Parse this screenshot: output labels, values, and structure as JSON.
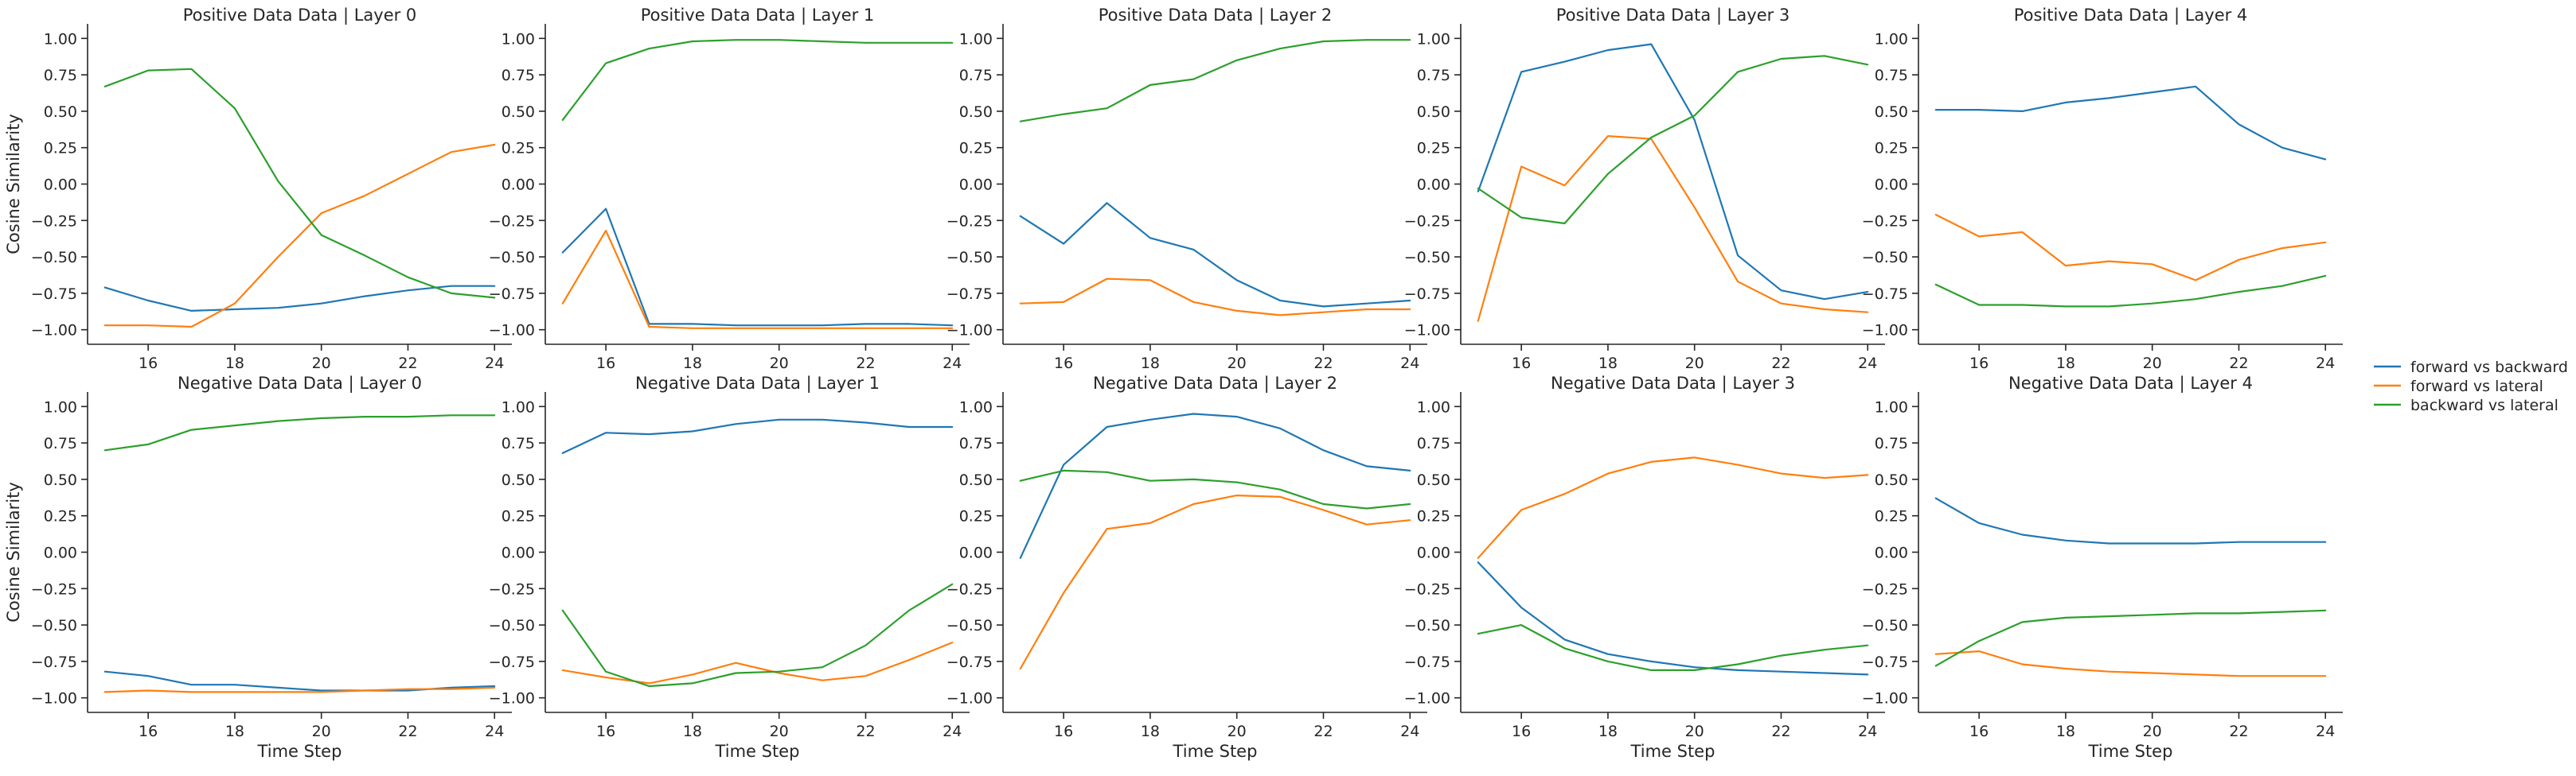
{
  "chart_data": [
    {
      "type": "line",
      "title": "Positive Data Data | Layer 0",
      "ylabel": "Cosine Similarity",
      "xlabel": "",
      "x": [
        15,
        16,
        17,
        18,
        19,
        20,
        21,
        22,
        23,
        24
      ],
      "ylim": [
        -1.1,
        1.1
      ],
      "xlim": [
        14.6,
        24.4
      ],
      "xticks": [
        16,
        18,
        20,
        22,
        24
      ],
      "yticks": [
        "1.00",
        "0.75",
        "0.50",
        "0.25",
        "0.00",
        "−0.25",
        "−0.50",
        "−0.75",
        "−1.00"
      ],
      "series": [
        {
          "name": "forward vs backward",
          "color": "#1f77b4",
          "values": [
            -0.71,
            -0.8,
            -0.87,
            -0.86,
            -0.85,
            -0.82,
            -0.77,
            -0.73,
            -0.7,
            -0.7
          ]
        },
        {
          "name": "forward vs lateral",
          "color": "#ff7f0e",
          "values": [
            -0.97,
            -0.97,
            -0.98,
            -0.82,
            -0.5,
            -0.2,
            -0.08,
            0.07,
            0.22,
            0.27
          ]
        },
        {
          "name": "backward vs lateral",
          "color": "#2ca02c",
          "values": [
            0.67,
            0.78,
            0.79,
            0.52,
            0.02,
            -0.35,
            -0.49,
            -0.64,
            -0.75,
            -0.78
          ]
        }
      ]
    },
    {
      "type": "line",
      "title": "Positive Data Data | Layer 1",
      "ylabel": "",
      "xlabel": "",
      "x": [
        15,
        16,
        17,
        18,
        19,
        20,
        21,
        22,
        23,
        24
      ],
      "ylim": [
        -1.1,
        1.1
      ],
      "xlim": [
        14.6,
        24.4
      ],
      "xticks": [
        16,
        18,
        20,
        22,
        24
      ],
      "yticks": [
        "1.00",
        "0.75",
        "0.50",
        "0.25",
        "0.00",
        "−0.25",
        "−0.50",
        "−0.75",
        "−1.00"
      ],
      "series": [
        {
          "name": "forward vs backward",
          "color": "#1f77b4",
          "values": [
            -0.47,
            -0.17,
            -0.96,
            -0.96,
            -0.97,
            -0.97,
            -0.97,
            -0.96,
            -0.96,
            -0.97
          ]
        },
        {
          "name": "forward vs lateral",
          "color": "#ff7f0e",
          "values": [
            -0.82,
            -0.32,
            -0.98,
            -0.99,
            -0.99,
            -0.99,
            -0.99,
            -0.99,
            -0.99,
            -0.99
          ]
        },
        {
          "name": "backward vs lateral",
          "color": "#2ca02c",
          "values": [
            0.44,
            0.83,
            0.93,
            0.98,
            0.99,
            0.99,
            0.98,
            0.97,
            0.97,
            0.97
          ]
        }
      ]
    },
    {
      "type": "line",
      "title": "Positive Data Data | Layer 2",
      "ylabel": "",
      "xlabel": "",
      "x": [
        15,
        16,
        17,
        18,
        19,
        20,
        21,
        22,
        23,
        24
      ],
      "ylim": [
        -1.1,
        1.1
      ],
      "xlim": [
        14.6,
        24.4
      ],
      "xticks": [
        16,
        18,
        20,
        22,
        24
      ],
      "yticks": [
        "1.00",
        "0.75",
        "0.50",
        "0.25",
        "0.00",
        "−0.25",
        "−0.50",
        "−0.75",
        "−1.00"
      ],
      "series": [
        {
          "name": "forward vs backward",
          "color": "#1f77b4",
          "values": [
            -0.22,
            -0.41,
            -0.13,
            -0.37,
            -0.45,
            -0.66,
            -0.8,
            -0.84,
            -0.82,
            -0.8
          ]
        },
        {
          "name": "forward vs lateral",
          "color": "#ff7f0e",
          "values": [
            -0.82,
            -0.81,
            -0.65,
            -0.66,
            -0.81,
            -0.87,
            -0.9,
            -0.88,
            -0.86,
            -0.86
          ]
        },
        {
          "name": "backward vs lateral",
          "color": "#2ca02c",
          "values": [
            0.43,
            0.48,
            0.52,
            0.68,
            0.72,
            0.85,
            0.93,
            0.98,
            0.99,
            0.99
          ]
        }
      ]
    },
    {
      "type": "line",
      "title": "Positive Data Data | Layer 3",
      "ylabel": "",
      "xlabel": "",
      "x": [
        15,
        16,
        17,
        18,
        19,
        20,
        21,
        22,
        23,
        24
      ],
      "ylim": [
        -1.1,
        1.1
      ],
      "xlim": [
        14.6,
        24.4
      ],
      "xticks": [
        16,
        18,
        20,
        22,
        24
      ],
      "yticks": [
        "1.00",
        "0.75",
        "0.50",
        "0.25",
        "0.00",
        "−0.25",
        "−0.50",
        "−0.75",
        "−1.00"
      ],
      "series": [
        {
          "name": "forward vs backward",
          "color": "#1f77b4",
          "values": [
            -0.05,
            0.77,
            0.84,
            0.92,
            0.96,
            0.44,
            -0.49,
            -0.73,
            -0.79,
            -0.74
          ]
        },
        {
          "name": "forward vs lateral",
          "color": "#ff7f0e",
          "values": [
            -0.94,
            0.12,
            -0.01,
            0.33,
            0.31,
            -0.16,
            -0.67,
            -0.82,
            -0.86,
            -0.88
          ]
        },
        {
          "name": "backward vs lateral",
          "color": "#2ca02c",
          "values": [
            -0.03,
            -0.23,
            -0.27,
            0.07,
            0.32,
            0.47,
            0.77,
            0.86,
            0.88,
            0.82
          ]
        }
      ]
    },
    {
      "type": "line",
      "title": "Positive Data Data | Layer 4",
      "ylabel": "",
      "xlabel": "",
      "x": [
        15,
        16,
        17,
        18,
        19,
        20,
        21,
        22,
        23,
        24
      ],
      "ylim": [
        -1.1,
        1.1
      ],
      "xlim": [
        14.6,
        24.4
      ],
      "xticks": [
        16,
        18,
        20,
        22,
        24
      ],
      "yticks": [
        "1.00",
        "0.75",
        "0.50",
        "0.25",
        "0.00",
        "−0.25",
        "−0.50",
        "−0.75",
        "−1.00"
      ],
      "series": [
        {
          "name": "forward vs backward",
          "color": "#1f77b4",
          "values": [
            0.51,
            0.51,
            0.5,
            0.56,
            0.59,
            0.63,
            0.67,
            0.41,
            0.25,
            0.17
          ]
        },
        {
          "name": "forward vs lateral",
          "color": "#ff7f0e",
          "values": [
            -0.21,
            -0.36,
            -0.33,
            -0.56,
            -0.53,
            -0.55,
            -0.66,
            -0.52,
            -0.44,
            -0.4
          ]
        },
        {
          "name": "backward vs lateral",
          "color": "#2ca02c",
          "values": [
            -0.69,
            -0.83,
            -0.83,
            -0.84,
            -0.84,
            -0.82,
            -0.79,
            -0.74,
            -0.7,
            -0.63
          ]
        }
      ]
    },
    {
      "type": "line",
      "title": "Negative Data Data | Layer 0",
      "ylabel": "Cosine Similarity",
      "xlabel": "Time Step",
      "x": [
        15,
        16,
        17,
        18,
        19,
        20,
        21,
        22,
        23,
        24
      ],
      "ylim": [
        -1.1,
        1.1
      ],
      "xlim": [
        14.6,
        24.4
      ],
      "xticks": [
        16,
        18,
        20,
        22,
        24
      ],
      "yticks": [
        "1.00",
        "0.75",
        "0.50",
        "0.25",
        "0.00",
        "−0.25",
        "−0.50",
        "−0.75",
        "−1.00"
      ],
      "series": [
        {
          "name": "forward vs backward",
          "color": "#1f77b4",
          "values": [
            -0.82,
            -0.85,
            -0.91,
            -0.91,
            -0.93,
            -0.95,
            -0.95,
            -0.95,
            -0.93,
            -0.92
          ]
        },
        {
          "name": "forward vs lateral",
          "color": "#ff7f0e",
          "values": [
            -0.96,
            -0.95,
            -0.96,
            -0.96,
            -0.96,
            -0.96,
            -0.95,
            -0.94,
            -0.94,
            -0.93
          ]
        },
        {
          "name": "backward vs lateral",
          "color": "#2ca02c",
          "values": [
            0.7,
            0.74,
            0.84,
            0.87,
            0.9,
            0.92,
            0.93,
            0.93,
            0.94,
            0.94
          ]
        }
      ]
    },
    {
      "type": "line",
      "title": "Negative Data Data | Layer 1",
      "ylabel": "",
      "xlabel": "Time Step",
      "x": [
        15,
        16,
        17,
        18,
        19,
        20,
        21,
        22,
        23,
        24
      ],
      "ylim": [
        -1.1,
        1.1
      ],
      "xlim": [
        14.6,
        24.4
      ],
      "xticks": [
        16,
        18,
        20,
        22,
        24
      ],
      "yticks": [
        "1.00",
        "0.75",
        "0.50",
        "0.25",
        "0.00",
        "−0.25",
        "−0.50",
        "−0.75",
        "−1.00"
      ],
      "series": [
        {
          "name": "forward vs backward",
          "color": "#1f77b4",
          "values": [
            0.68,
            0.82,
            0.81,
            0.83,
            0.88,
            0.91,
            0.91,
            0.89,
            0.86,
            0.86
          ]
        },
        {
          "name": "forward vs lateral",
          "color": "#ff7f0e",
          "values": [
            -0.81,
            -0.86,
            -0.9,
            -0.84,
            -0.76,
            -0.83,
            -0.88,
            -0.85,
            -0.74,
            -0.62
          ]
        },
        {
          "name": "backward vs lateral",
          "color": "#2ca02c",
          "values": [
            -0.4,
            -0.82,
            -0.92,
            -0.9,
            -0.83,
            -0.82,
            -0.79,
            -0.64,
            -0.4,
            -0.22
          ]
        }
      ]
    },
    {
      "type": "line",
      "title": "Negative Data Data | Layer 2",
      "ylabel": "",
      "xlabel": "Time Step",
      "x": [
        15,
        16,
        17,
        18,
        19,
        20,
        21,
        22,
        23,
        24
      ],
      "ylim": [
        -1.1,
        1.1
      ],
      "xlim": [
        14.6,
        24.4
      ],
      "xticks": [
        16,
        18,
        20,
        22,
        24
      ],
      "yticks": [
        "1.00",
        "0.75",
        "0.50",
        "0.25",
        "0.00",
        "−0.25",
        "−0.50",
        "−0.75",
        "−1.00"
      ],
      "series": [
        {
          "name": "forward vs backward",
          "color": "#1f77b4",
          "values": [
            -0.04,
            0.6,
            0.86,
            0.91,
            0.95,
            0.93,
            0.85,
            0.7,
            0.59,
            0.56
          ]
        },
        {
          "name": "forward vs lateral",
          "color": "#ff7f0e",
          "values": [
            -0.8,
            -0.28,
            0.16,
            0.2,
            0.33,
            0.39,
            0.38,
            0.29,
            0.19,
            0.22
          ]
        },
        {
          "name": "backward vs lateral",
          "color": "#2ca02c",
          "values": [
            0.49,
            0.56,
            0.55,
            0.49,
            0.5,
            0.48,
            0.43,
            0.33,
            0.3,
            0.33
          ]
        }
      ]
    },
    {
      "type": "line",
      "title": "Negative Data Data | Layer 3",
      "ylabel": "",
      "xlabel": "Time Step",
      "x": [
        15,
        16,
        17,
        18,
        19,
        20,
        21,
        22,
        23,
        24
      ],
      "ylim": [
        -1.1,
        1.1
      ],
      "xlim": [
        14.6,
        24.4
      ],
      "xticks": [
        16,
        18,
        20,
        22,
        24
      ],
      "yticks": [
        "1.00",
        "0.75",
        "0.50",
        "0.25",
        "0.00",
        "−0.25",
        "−0.50",
        "−0.75",
        "−1.00"
      ],
      "series": [
        {
          "name": "forward vs backward",
          "color": "#1f77b4",
          "values": [
            -0.07,
            -0.38,
            -0.6,
            -0.7,
            -0.75,
            -0.79,
            -0.81,
            -0.82,
            -0.83,
            -0.84
          ]
        },
        {
          "name": "forward vs lateral",
          "color": "#ff7f0e",
          "values": [
            -0.04,
            0.29,
            0.4,
            0.54,
            0.62,
            0.65,
            0.6,
            0.54,
            0.51,
            0.53
          ]
        },
        {
          "name": "backward vs lateral",
          "color": "#2ca02c",
          "values": [
            -0.56,
            -0.5,
            -0.66,
            -0.75,
            -0.81,
            -0.81,
            -0.77,
            -0.71,
            -0.67,
            -0.64
          ]
        }
      ]
    },
    {
      "type": "line",
      "title": "Negative Data Data | Layer 4",
      "ylabel": "",
      "xlabel": "Time Step",
      "x": [
        15,
        16,
        17,
        18,
        19,
        20,
        21,
        22,
        23,
        24
      ],
      "ylim": [
        -1.1,
        1.1
      ],
      "xlim": [
        14.6,
        24.4
      ],
      "xticks": [
        16,
        18,
        20,
        22,
        24
      ],
      "yticks": [
        "1.00",
        "0.75",
        "0.50",
        "0.25",
        "0.00",
        "−0.25",
        "−0.50",
        "−0.75",
        "−1.00"
      ],
      "series": [
        {
          "name": "forward vs backward",
          "color": "#1f77b4",
          "values": [
            0.37,
            0.2,
            0.12,
            0.08,
            0.06,
            0.06,
            0.06,
            0.07,
            0.07,
            0.07
          ]
        },
        {
          "name": "forward vs lateral",
          "color": "#ff7f0e",
          "values": [
            -0.7,
            -0.68,
            -0.77,
            -0.8,
            -0.82,
            -0.83,
            -0.84,
            -0.85,
            -0.85,
            -0.85
          ]
        },
        {
          "name": "backward vs lateral",
          "color": "#2ca02c",
          "values": [
            -0.78,
            -0.61,
            -0.48,
            -0.45,
            -0.44,
            -0.43,
            -0.42,
            -0.42,
            -0.41,
            -0.4
          ]
        }
      ]
    }
  ],
  "legend": {
    "placement": "right",
    "entries": [
      {
        "label": "forward vs backward",
        "color": "#1f77b4"
      },
      {
        "label": "forward vs lateral",
        "color": "#ff7f0e"
      },
      {
        "label": "backward vs lateral",
        "color": "#2ca02c"
      }
    ]
  }
}
